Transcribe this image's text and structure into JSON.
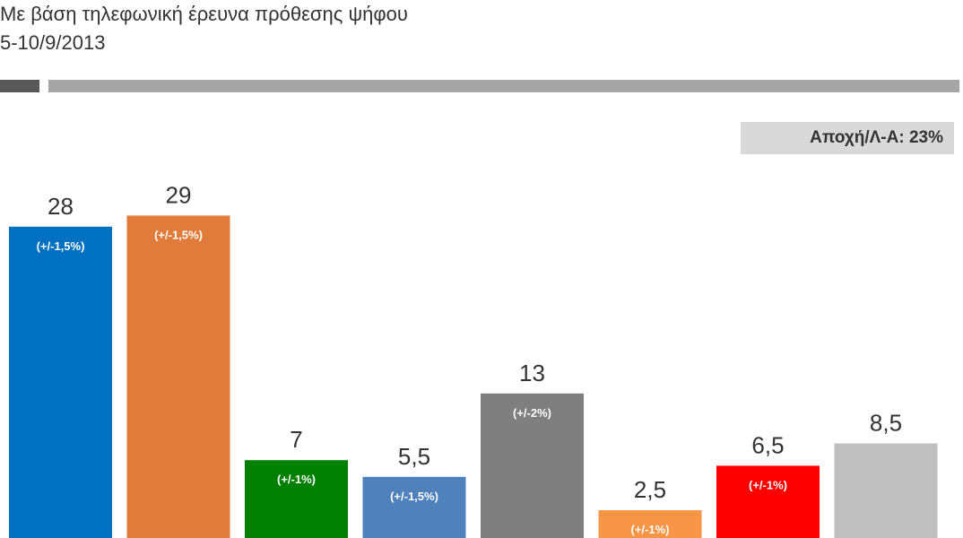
{
  "header": {
    "subtitle": "Με βάση τηλεφωνική έρευνα πρόθεσης ψήφου",
    "date": "5-10/9/2013"
  },
  "abstention": {
    "label": "Αποχή/Λ-Α: 23%"
  },
  "chart_data": {
    "type": "bar",
    "categories": [
      "",
      "",
      "",
      "",
      "",
      "",
      "",
      ""
    ],
    "values": [
      28,
      29,
      7,
      5.5,
      13,
      2.5,
      6.5,
      8.5
    ],
    "value_labels": [
      "28",
      "29",
      "7",
      "5,5",
      "13",
      "2,5",
      "6,5",
      "8,5"
    ],
    "margin_labels": [
      "(+/-1,5%)",
      "(+/-1,5%)",
      "(+/-1%)",
      "(+/-1,5%)",
      "(+/-2%)",
      "(+/-1%)",
      "(+/-1%)",
      ""
    ],
    "colors": [
      "#0070c0",
      "#e07b39",
      "#008000",
      "#4f81bd",
      "#7f7f7f",
      "#f79646",
      "#ff0000",
      "#bfbfbf"
    ],
    "title": "",
    "xlabel": "",
    "ylabel": ""
  }
}
